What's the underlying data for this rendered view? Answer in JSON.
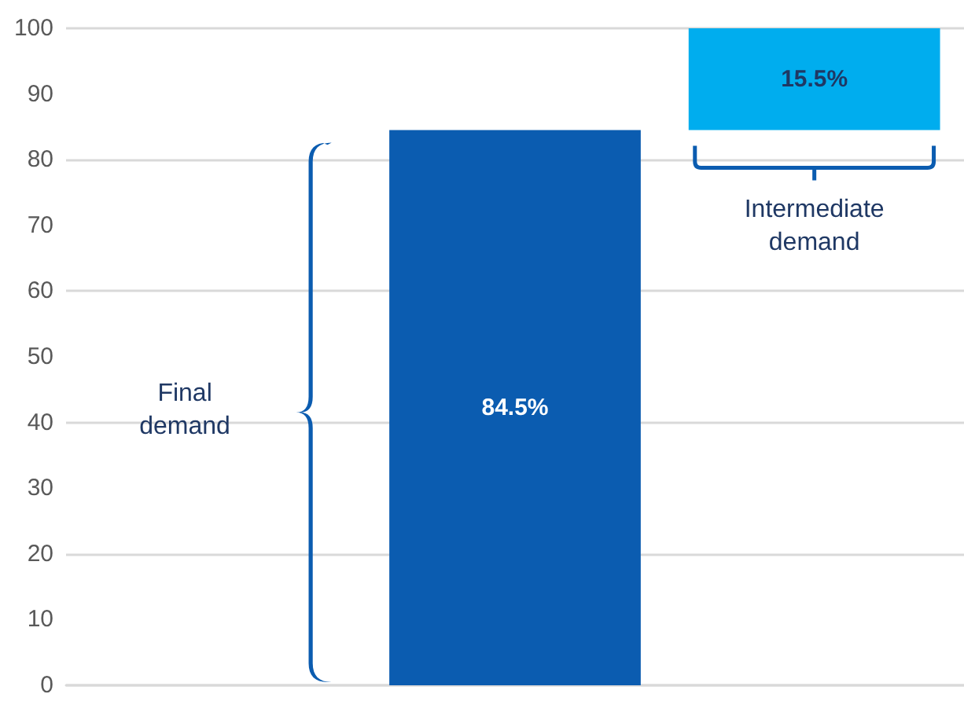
{
  "chart_data": {
    "type": "bar",
    "categories": [
      null,
      null,
      null
    ],
    "values": [
      null,
      84.5,
      15.5
    ],
    "base": [
      null,
      0,
      84.5
    ],
    "colors": [
      "#0b5cb0",
      "#0b5cb0",
      "#00adee"
    ],
    "value_labels": [
      null,
      "84.5%",
      "15.5%"
    ],
    "annotations": [
      "Final demand",
      "Intermediate demand"
    ],
    "ylim": [
      0,
      100
    ],
    "yticks": [
      0,
      10,
      20,
      30,
      40,
      50,
      60,
      70,
      80,
      90,
      100
    ],
    "grid": "y"
  }
}
